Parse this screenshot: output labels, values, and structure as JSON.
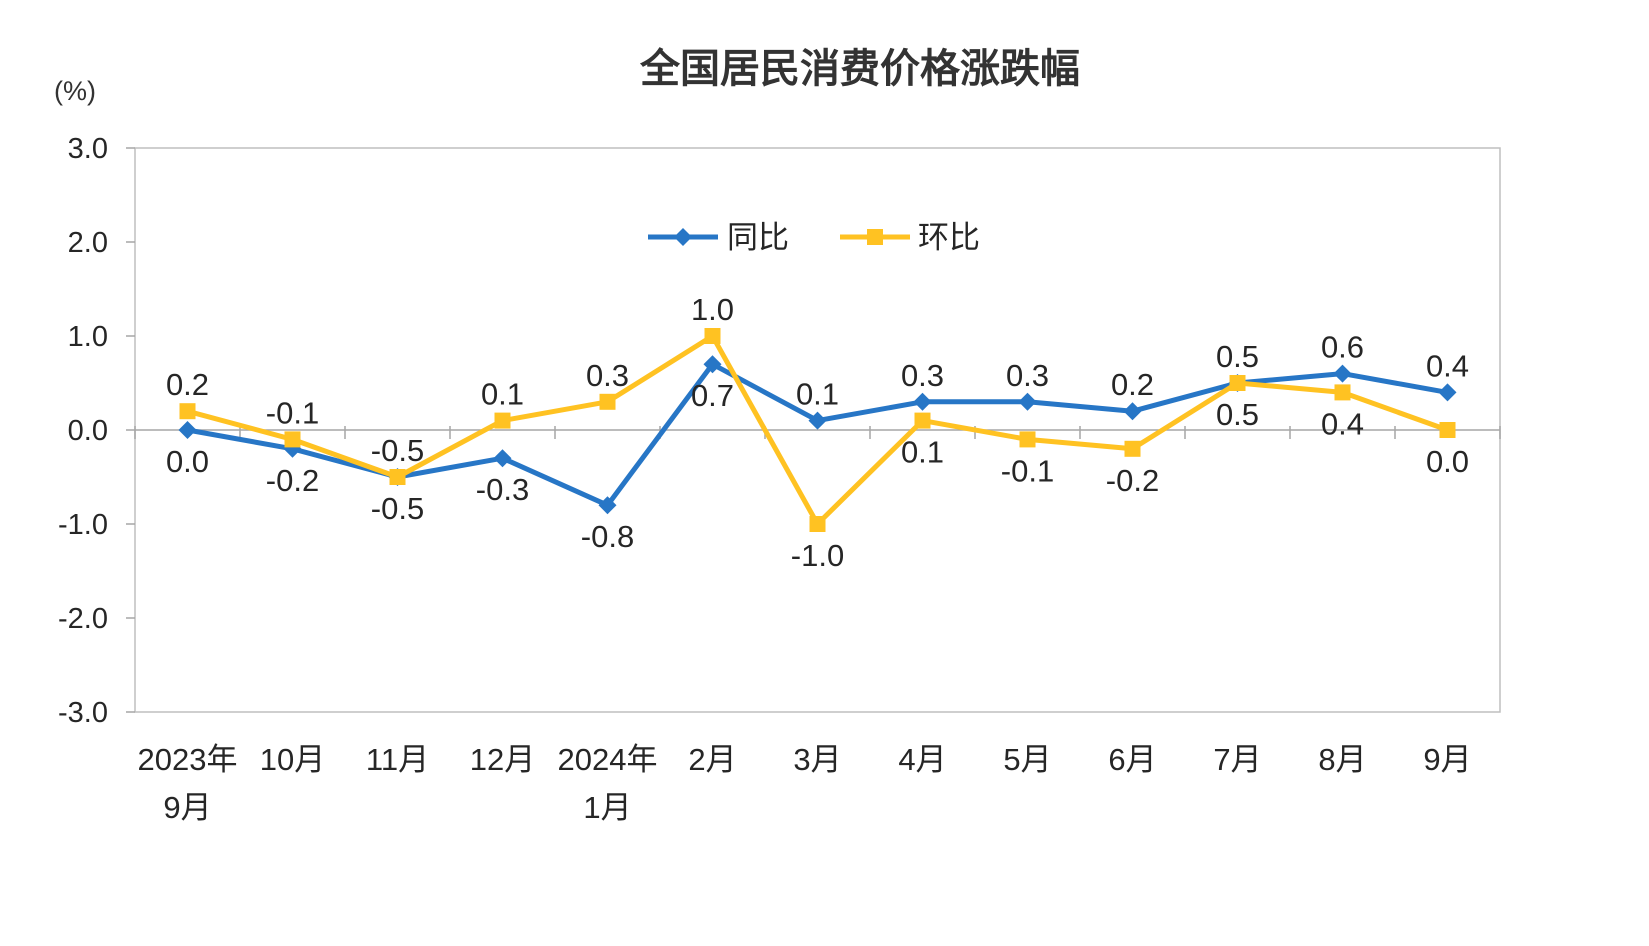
{
  "chart_data": {
    "type": "line",
    "title": "全国居民消费价格涨跌幅",
    "ylabel": "(%)",
    "xlabel": "",
    "ylim": [
      -3.0,
      3.0
    ],
    "ytick_values": [
      3.0,
      2.0,
      1.0,
      0.0,
      -1.0,
      -2.0,
      -3.0
    ],
    "ytick_labels": [
      "3.0",
      "2.0",
      "1.0",
      "0.0",
      "-1.0",
      "-2.0",
      "-3.0"
    ],
    "grid": false,
    "legend_position": "top-center",
    "axis_color": "#BFBFBF",
    "tick_color": "#A6A6A6",
    "zero_line_color": "#A6A6A6",
    "label_color": "#262626",
    "categories": [
      [
        "2023年",
        "9月"
      ],
      [
        "10月"
      ],
      [
        "11月"
      ],
      [
        "12月"
      ],
      [
        "2024年",
        "1月"
      ],
      [
        "2月"
      ],
      [
        "3月"
      ],
      [
        "4月"
      ],
      [
        "5月"
      ],
      [
        "6月"
      ],
      [
        "7月"
      ],
      [
        "8月"
      ],
      [
        "9月"
      ]
    ],
    "series": [
      {
        "id": "yoy",
        "name": "同比",
        "color": "#2776C6",
        "marker": "diamond",
        "values": [
          0.0,
          -0.2,
          -0.5,
          -0.3,
          -0.8,
          0.7,
          0.1,
          0.3,
          0.3,
          0.2,
          0.5,
          0.6,
          0.4
        ],
        "labels": [
          "0.0",
          "-0.2",
          "-0.5",
          "-0.3",
          "-0.8",
          "0.7",
          "0.1",
          "0.3",
          "0.3",
          "0.2",
          "0.5",
          "0.6",
          "0.4"
        ],
        "label_side": [
          "below",
          "below",
          "below",
          "below",
          "below",
          "below",
          "above",
          "above",
          "above",
          "above",
          "above",
          "above",
          "above"
        ]
      },
      {
        "id": "mom",
        "name": "环比",
        "color": "#FFC222",
        "marker": "square",
        "values": [
          0.2,
          -0.1,
          -0.5,
          0.1,
          0.3,
          1.0,
          -1.0,
          0.1,
          -0.1,
          -0.2,
          0.5,
          0.4,
          0.0
        ],
        "labels": [
          "0.2",
          "-0.1",
          "-0.5",
          "0.1",
          "0.3",
          "1.0",
          "-1.0",
          "0.1",
          "-0.1",
          "-0.2",
          "0.5",
          "0.4",
          "0.0"
        ],
        "label_side": [
          "above",
          "above",
          "above",
          "above",
          "above",
          "above",
          "below",
          "below",
          "below",
          "below",
          "below",
          "below",
          "below"
        ]
      }
    ]
  }
}
